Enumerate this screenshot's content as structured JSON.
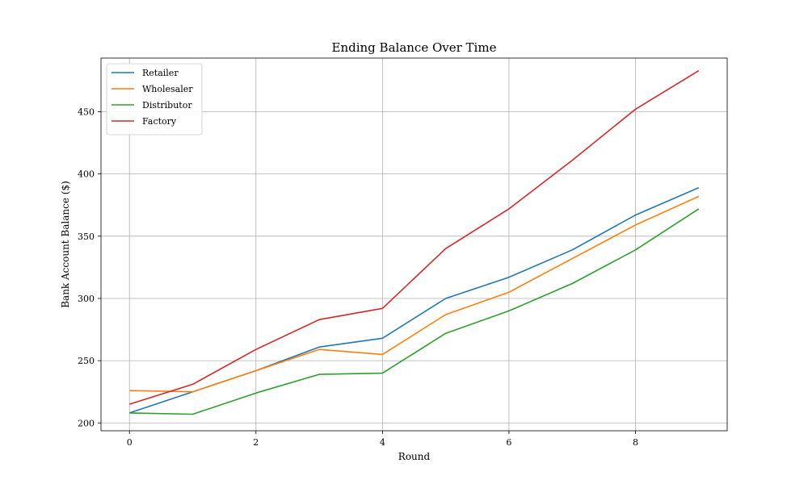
{
  "chart_data": {
    "type": "line",
    "title": "Ending Balance Over Time",
    "xlabel": "Round",
    "ylabel": "Bank Account Balance ($)",
    "x": [
      0,
      1,
      2,
      3,
      4,
      5,
      6,
      7,
      8,
      9
    ],
    "xlim": [
      -0.45,
      9.45
    ],
    "ylim": [
      193.7,
      493.1
    ],
    "xticks": [
      0,
      2,
      4,
      6,
      8
    ],
    "yticks": [
      200,
      250,
      300,
      350,
      400,
      450
    ],
    "grid": true,
    "legend_position": "top-left",
    "series": [
      {
        "name": "Retailer",
        "color": "#1f77b4",
        "values": [
          208,
          225,
          242,
          261,
          268,
          300,
          317,
          339,
          367,
          389
        ]
      },
      {
        "name": "Wholesaler",
        "color": "#ff7f0e",
        "values": [
          226,
          225,
          242,
          259,
          255,
          287,
          305,
          332,
          359,
          382
        ]
      },
      {
        "name": "Distributor",
        "color": "#2ca02c",
        "values": [
          208,
          207,
          224,
          239,
          240,
          272,
          290,
          312,
          339,
          372
        ]
      },
      {
        "name": "Factory",
        "color": "#d62728",
        "values": [
          215,
          231,
          259,
          283,
          292,
          340,
          372,
          411,
          452,
          483
        ]
      }
    ]
  }
}
